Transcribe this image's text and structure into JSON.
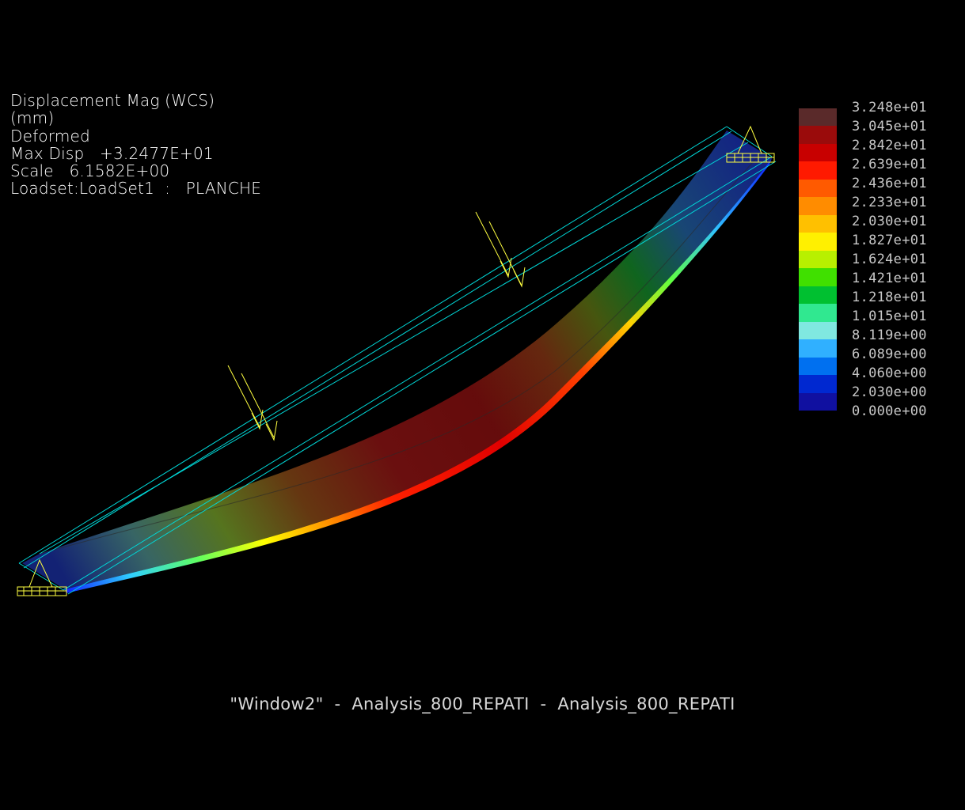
{
  "info": {
    "lines": [
      "Displacement Mag (WCS)",
      "(mm)",
      "Deformed",
      "Max Disp   +3.2477E+01",
      "Scale   6.1582E+00",
      "Loadset:LoadSet1  :   PLANCHE"
    ]
  },
  "legend": {
    "labels": [
      "3.248e+01",
      "3.045e+01",
      "2.842e+01",
      "2.639e+01",
      "2.436e+01",
      "2.233e+01",
      "2.030e+01",
      "1.827e+01",
      "1.624e+01",
      "1.421e+01",
      "1.218e+01",
      "1.015e+01",
      "8.119e+00",
      "6.089e+00",
      "4.060e+00",
      "2.030e+00",
      "0.000e+00"
    ],
    "colors": [
      "#5a2a2a",
      "#9a0b0b",
      "#c80000",
      "#ff1a00",
      "#ff5a00",
      "#ff8c00",
      "#ffc000",
      "#fff000",
      "#b8f000",
      "#40e000",
      "#00c030",
      "#30e890",
      "#80e8e0",
      "#30b0ff",
      "#0070f0",
      "#0028d0",
      "#1010a0"
    ]
  },
  "colors": {
    "background": "#000000",
    "wireframe": "#00d8d8",
    "load_arrow": "#ffff40",
    "constraint": "#ffff40"
  },
  "window_title": "\"Window2\"  -  Analysis_800_REPATI  -  Analysis_800_REPATI"
}
